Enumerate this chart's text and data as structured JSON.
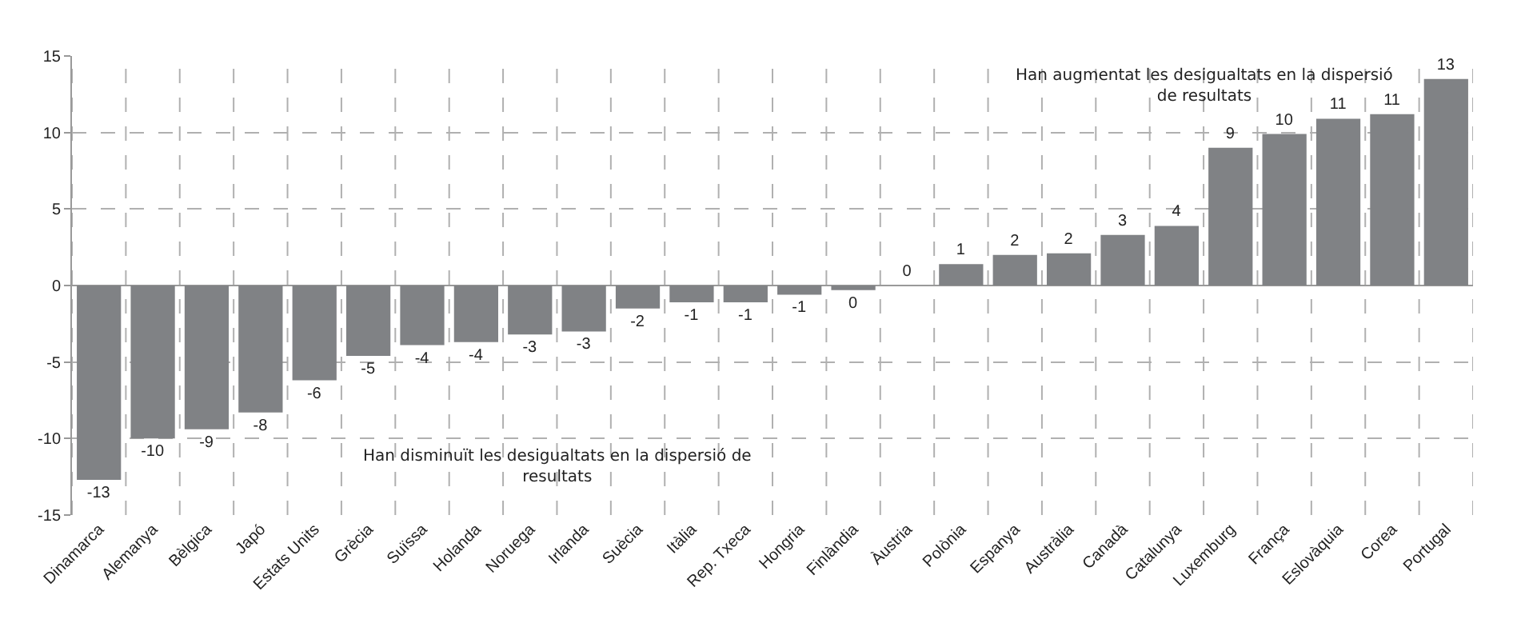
{
  "chart_data": {
    "type": "bar",
    "categories": [
      "Dinamarca",
      "Alemanya",
      "Bèlgica",
      "Japó",
      "Estats Units",
      "Grècia",
      "Suïssa",
      "Holanda",
      "Noruega",
      "Irlanda",
      "Suècia",
      "Itàlia",
      "Rep. Txeca",
      "Hongria",
      "Finlàndia",
      "Àustria",
      "Polònia",
      "Espanya",
      "Austràlia",
      "Canadà",
      "Catalunya",
      "Luxemburg",
      "França",
      "Eslovàquia",
      "Corea",
      "Portugal"
    ],
    "values": [
      -12.7,
      -10.0,
      -9.4,
      -8.3,
      -6.2,
      -4.6,
      -3.9,
      -3.7,
      -3.2,
      -3.0,
      -1.5,
      -1.1,
      -1.1,
      -0.6,
      -0.3,
      0.0,
      1.4,
      2.0,
      2.1,
      3.3,
      3.9,
      9.0,
      9.9,
      10.9,
      11.2,
      13.5
    ],
    "value_labels": [
      "-13",
      "-10",
      "-9",
      "-8",
      "-6",
      "-5",
      "-4",
      "-4",
      "-3",
      "-3",
      "-2",
      "-1",
      "-1",
      "-1",
      "0",
      "0",
      "1",
      "2",
      "2",
      "3",
      "4",
      "9",
      "10",
      "11",
      "11",
      "13"
    ],
    "color": "#808285",
    "ylim": [
      -15,
      15
    ],
    "yticks": [
      -15,
      -10,
      -5,
      0,
      5,
      10,
      15
    ],
    "grid": true,
    "legend": false,
    "annotations": [
      "Han augmentat les desigualtats en la dispersió\nde resultats",
      "Han disminuït les desigualtats en la dispersió de\nresultats"
    ]
  }
}
